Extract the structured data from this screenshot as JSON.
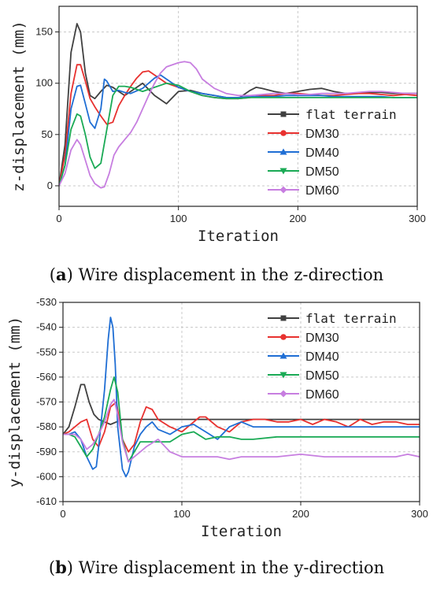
{
  "chart_data": [
    {
      "type": "line",
      "caption_letter": "a",
      "caption_text": "Wire displacement in the z-direction",
      "xlabel": "Iteration",
      "ylabel": "z-displacement (mm)",
      "xlim": [
        0,
        300
      ],
      "ylim": [
        -20,
        175
      ],
      "xticks": [
        0,
        100,
        200,
        300
      ],
      "yticks": [
        0,
        50,
        100,
        150
      ],
      "grid": true,
      "legend_position": "right",
      "series": [
        {
          "name": "flat terrain",
          "color": "#404040",
          "x": [
            0,
            5,
            10,
            15,
            18,
            22,
            26,
            30,
            35,
            40,
            45,
            50,
            55,
            60,
            70,
            80,
            90,
            100,
            110,
            120,
            130,
            140,
            150,
            160,
            165,
            170,
            180,
            190,
            200,
            210,
            220,
            230,
            240,
            250,
            260,
            270,
            280,
            290,
            300
          ],
          "y": [
            0,
            40,
            130,
            158,
            150,
            110,
            88,
            85,
            92,
            98,
            96,
            92,
            88,
            92,
            100,
            88,
            80,
            92,
            93,
            90,
            88,
            86,
            85,
            93,
            96,
            95,
            92,
            90,
            92,
            94,
            95,
            92,
            90,
            90,
            91,
            91,
            90,
            90,
            90
          ]
        },
        {
          "name": "DM30",
          "color": "#e8312f",
          "x": [
            0,
            5,
            10,
            15,
            18,
            22,
            26,
            30,
            35,
            40,
            45,
            50,
            55,
            60,
            65,
            70,
            75,
            80,
            90,
            100,
            110,
            120,
            130,
            140,
            150,
            160,
            170,
            180,
            190,
            200,
            210,
            220,
            230,
            240,
            250,
            260,
            270,
            280,
            290,
            300
          ],
          "y": [
            0,
            30,
            90,
            118,
            118,
            102,
            85,
            77,
            68,
            60,
            62,
            78,
            88,
            97,
            105,
            111,
            112,
            108,
            100,
            96,
            92,
            88,
            86,
            85,
            85,
            86,
            88,
            88,
            90,
            90,
            89,
            88,
            88,
            89,
            90,
            90,
            89,
            88,
            89,
            88
          ]
        },
        {
          "name": "DM40",
          "color": "#1f6ed4",
          "x": [
            0,
            5,
            10,
            15,
            18,
            22,
            26,
            30,
            35,
            38,
            40,
            45,
            50,
            55,
            60,
            70,
            80,
            85,
            90,
            95,
            100,
            110,
            120,
            130,
            140,
            150,
            160,
            170,
            180,
            190,
            200,
            210,
            220,
            230,
            240,
            250,
            260,
            270,
            280,
            290,
            300
          ],
          "y": [
            0,
            20,
            75,
            97,
            98,
            80,
            62,
            56,
            75,
            104,
            102,
            92,
            93,
            91,
            90,
            95,
            105,
            108,
            104,
            100,
            96,
            92,
            90,
            88,
            86,
            86,
            87,
            87,
            87,
            88,
            88,
            88,
            88,
            87,
            87,
            87,
            87,
            87,
            86,
            86,
            86
          ]
        },
        {
          "name": "DM50",
          "color": "#1aaa55",
          "x": [
            0,
            5,
            10,
            15,
            18,
            22,
            26,
            30,
            35,
            40,
            45,
            50,
            55,
            60,
            70,
            80,
            90,
            100,
            110,
            120,
            130,
            140,
            150,
            160,
            170,
            180,
            190,
            200,
            210,
            220,
            230,
            240,
            250,
            260,
            270,
            280,
            290,
            300
          ],
          "y": [
            0,
            20,
            55,
            70,
            68,
            50,
            28,
            17,
            22,
            55,
            88,
            97,
            97,
            96,
            92,
            96,
            100,
            98,
            92,
            88,
            86,
            85,
            85,
            86,
            86,
            86,
            86,
            86,
            86,
            86,
            86,
            86,
            86,
            86,
            86,
            86,
            86,
            86
          ]
        },
        {
          "name": "DM60",
          "color": "#c77ee0",
          "x": [
            0,
            5,
            10,
            15,
            18,
            22,
            26,
            30,
            35,
            38,
            42,
            46,
            50,
            55,
            60,
            65,
            70,
            75,
            80,
            85,
            90,
            100,
            105,
            110,
            115,
            120,
            130,
            140,
            150,
            160,
            170,
            180,
            190,
            200,
            210,
            220,
            230,
            240,
            250,
            260,
            270,
            280,
            290,
            300
          ],
          "y": [
            0,
            12,
            35,
            45,
            40,
            25,
            10,
            2,
            -2,
            -1,
            12,
            30,
            38,
            45,
            52,
            62,
            75,
            88,
            100,
            110,
            116,
            120,
            121,
            120,
            114,
            104,
            95,
            90,
            88,
            88,
            89,
            90,
            90,
            89,
            89,
            90,
            90,
            90,
            91,
            92,
            92,
            91,
            90,
            90
          ]
        }
      ]
    },
    {
      "type": "line",
      "caption_letter": "b",
      "caption_text": "Wire displacement in the y-direction",
      "xlabel": "Iteration",
      "ylabel": "y-displacement (mm)",
      "xlim": [
        0,
        300
      ],
      "ylim": [
        -610,
        -530
      ],
      "xticks": [
        0,
        100,
        200,
        300
      ],
      "yticks": [
        -530,
        -540,
        -550,
        -560,
        -570,
        -580,
        -590,
        -600,
        -610
      ],
      "grid": true,
      "legend_position": "top-right",
      "series": [
        {
          "name": "flat terrain",
          "color": "#404040",
          "x": [
            0,
            5,
            10,
            15,
            18,
            22,
            26,
            30,
            35,
            40,
            45,
            50,
            55,
            60,
            70,
            80,
            90,
            100,
            120,
            140,
            160,
            180,
            200,
            220,
            240,
            260,
            280,
            300
          ],
          "y": [
            -583,
            -580,
            -572,
            -563,
            -563,
            -570,
            -575,
            -577,
            -578,
            -579,
            -578,
            -577,
            -577,
            -577,
            -577,
            -577,
            -577,
            -577,
            -577,
            -577,
            -577,
            -577,
            -577,
            -577,
            -577,
            -577,
            -577,
            -577
          ]
        },
        {
          "name": "DM30",
          "color": "#e8312f",
          "x": [
            0,
            5,
            10,
            15,
            20,
            25,
            30,
            35,
            40,
            45,
            50,
            55,
            60,
            65,
            70,
            75,
            80,
            90,
            100,
            110,
            115,
            120,
            130,
            140,
            150,
            160,
            170,
            180,
            190,
            200,
            210,
            220,
            230,
            240,
            250,
            260,
            270,
            280,
            290,
            300
          ],
          "y": [
            -583,
            -582,
            -580,
            -578,
            -577,
            -585,
            -588,
            -582,
            -572,
            -570,
            -585,
            -590,
            -587,
            -578,
            -572,
            -573,
            -577,
            -580,
            -582,
            -578,
            -576,
            -576,
            -580,
            -582,
            -578,
            -577,
            -577,
            -578,
            -578,
            -577,
            -579,
            -577,
            -578,
            -580,
            -577,
            -579,
            -578,
            -578,
            -579,
            -579
          ]
        },
        {
          "name": "DM40",
          "color": "#1f6ed4",
          "x": [
            0,
            5,
            10,
            15,
            20,
            25,
            28,
            30,
            35,
            38,
            40,
            42,
            44,
            46,
            50,
            53,
            55,
            58,
            60,
            65,
            70,
            75,
            80,
            90,
            100,
            110,
            120,
            130,
            140,
            150,
            160,
            170,
            180,
            190,
            200,
            220,
            240,
            260,
            280,
            300
          ],
          "y": [
            -583,
            -583,
            -582,
            -585,
            -592,
            -597,
            -596,
            -588,
            -565,
            -545,
            -536,
            -540,
            -555,
            -580,
            -597,
            -600,
            -598,
            -592,
            -588,
            -583,
            -580,
            -578,
            -581,
            -583,
            -580,
            -579,
            -582,
            -585,
            -580,
            -578,
            -580,
            -580,
            -580,
            -580,
            -580,
            -580,
            -580,
            -580,
            -580,
            -580
          ]
        },
        {
          "name": "DM50",
          "color": "#1aaa55",
          "x": [
            0,
            5,
            10,
            15,
            20,
            25,
            30,
            35,
            40,
            43,
            46,
            50,
            55,
            60,
            65,
            70,
            80,
            90,
            100,
            110,
            120,
            130,
            140,
            150,
            160,
            180,
            200,
            220,
            240,
            260,
            280,
            300
          ],
          "y": [
            -583,
            -583,
            -584,
            -588,
            -592,
            -589,
            -583,
            -576,
            -565,
            -560,
            -566,
            -585,
            -594,
            -590,
            -586,
            -586,
            -586,
            -586,
            -583,
            -582,
            -585,
            -584,
            -584,
            -585,
            -585,
            -584,
            -584,
            -584,
            -584,
            -584,
            -584,
            -584
          ]
        },
        {
          "name": "DM60",
          "color": "#c77ee0",
          "x": [
            0,
            5,
            10,
            15,
            20,
            25,
            30,
            35,
            40,
            43,
            46,
            50,
            55,
            60,
            65,
            70,
            80,
            90,
            100,
            110,
            120,
            130,
            140,
            150,
            160,
            180,
            200,
            220,
            240,
            260,
            280,
            290,
            300
          ],
          "y": [
            -583,
            -583,
            -583,
            -585,
            -589,
            -587,
            -583,
            -578,
            -571,
            -569,
            -575,
            -586,
            -594,
            -592,
            -590,
            -588,
            -585,
            -590,
            -592,
            -592,
            -592,
            -592,
            -593,
            -592,
            -592,
            -592,
            -591,
            -592,
            -592,
            -592,
            -592,
            -591,
            -592
          ]
        }
      ]
    }
  ]
}
